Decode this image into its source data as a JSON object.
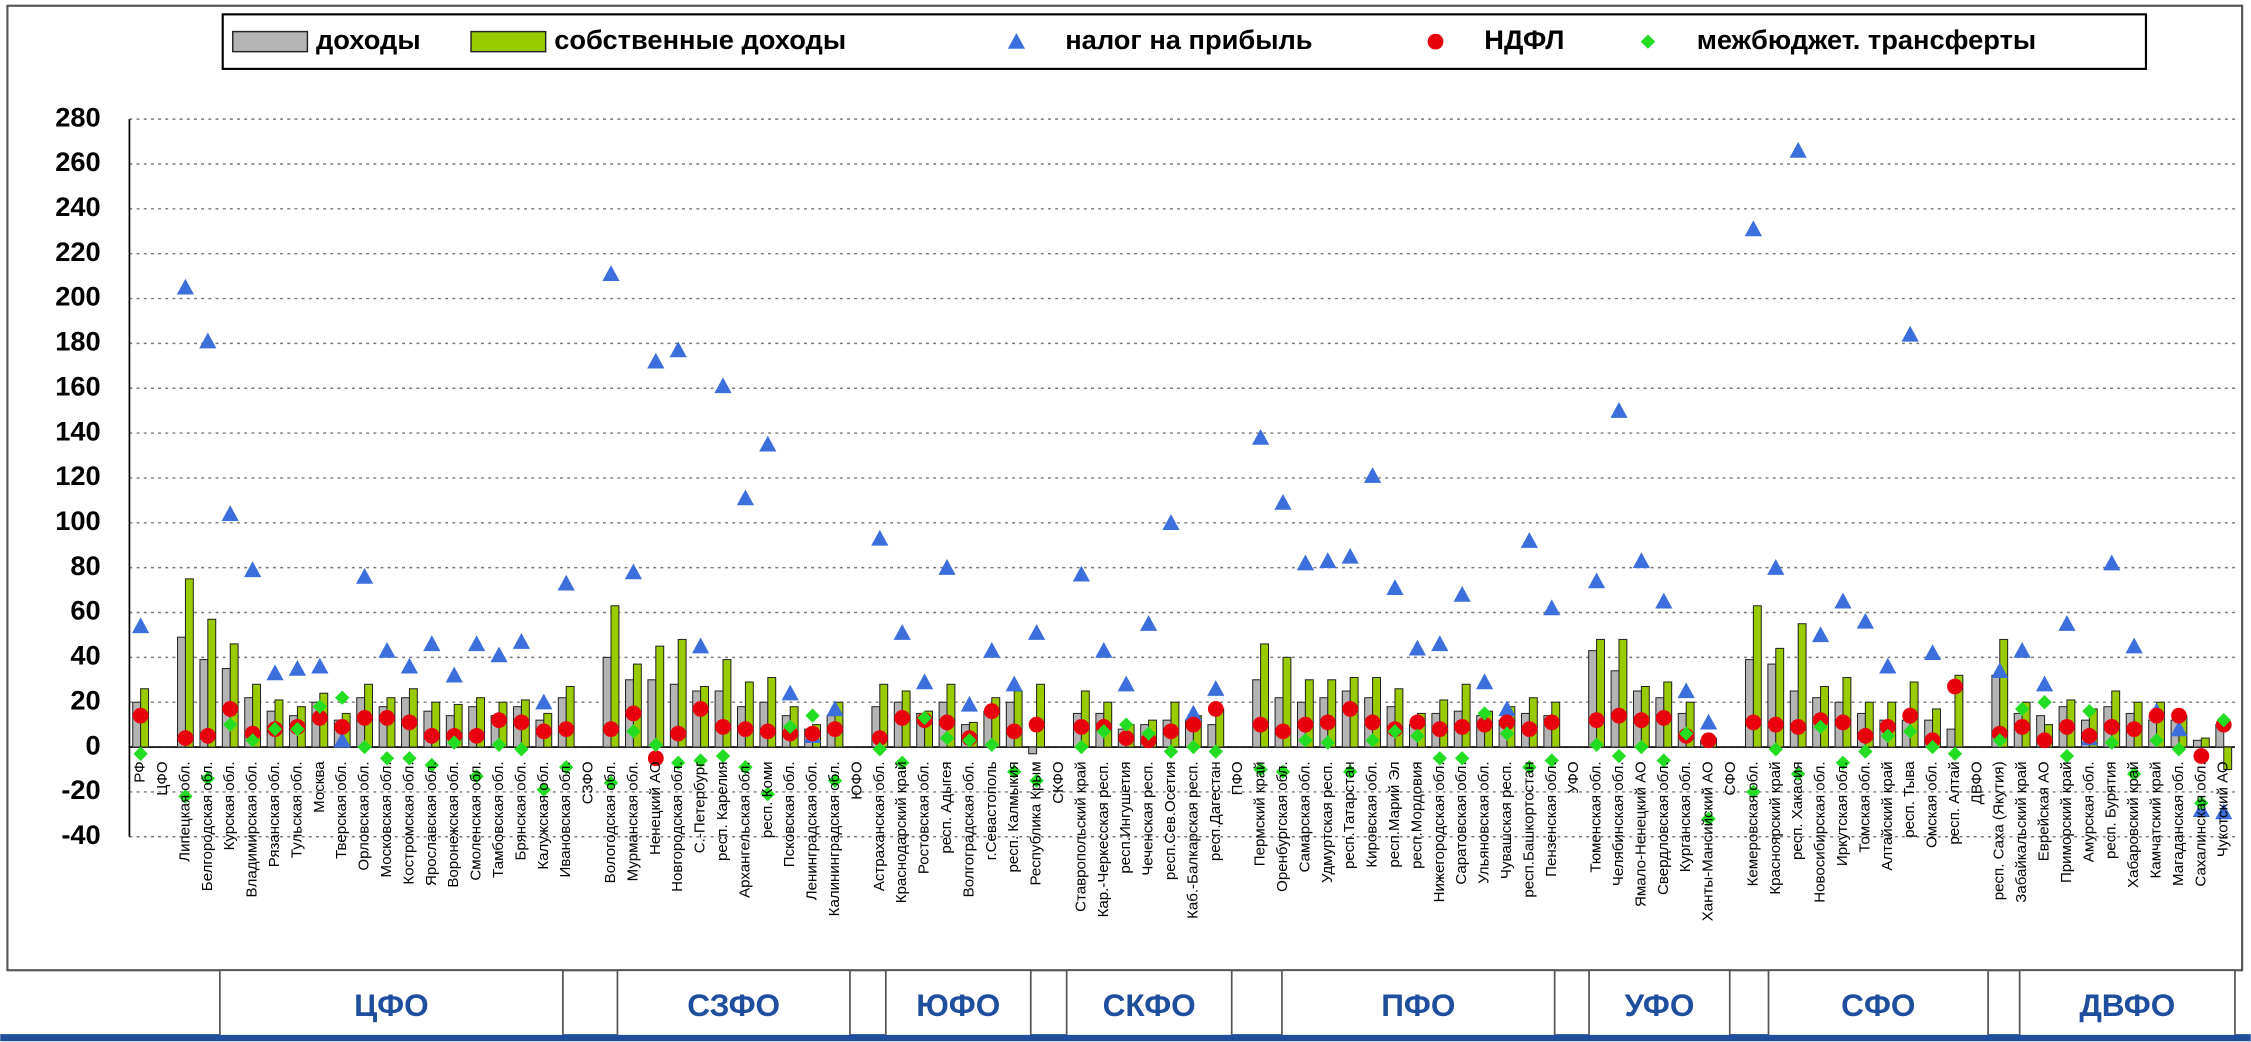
{
  "chart_data": {
    "type": "bar",
    "categories": [
      "РФ",
      "ЦФО",
      "Липецкая обл.",
      "Белгородская обл.",
      "Курская обл.",
      "Владимирская обл.",
      "Рязанская обл.",
      "Тульская обл.",
      "Москва",
      "Тверская обл.",
      "Орловская обл.",
      "Московская обл.",
      "Костромская обл.",
      "Ярославская обл.",
      "Воронежская обл.",
      "Смоленская обл.",
      "Тамбовская обл.",
      "Брянская обл.",
      "Калужская обл.",
      "Ивановская обл.",
      "СЗФО",
      "Вологодская обл.",
      "Мурманская обл.",
      "Ненецкий АО",
      "Новгородская обл.",
      "С.-Петербург",
      "респ. Карелия",
      "Архангельская обл.",
      "респ. Коми",
      "Псковская обл.",
      "Ленинградская обл.",
      "Калининградская обл.",
      "ЮФО",
      "Астраханская обл.",
      "Краснодарский край",
      "Ростовская обл.",
      "респ. Адыгея",
      "Волгоградская обл.",
      "г.Севастополь",
      "респ. Калмыкия",
      "Республика Крым",
      "СКФО",
      "Ставропольский край",
      "Кар.-Черкесская респ.",
      "респ.Ингушетия",
      "Чеченская респ.",
      "респ.Сев.Осетия",
      "Каб.-Балкарская респ.",
      "респ.Дагестан",
      "ПФО",
      "Пермский край",
      "Оренбургская обл.",
      "Самарская обл.",
      "Удмуртская респ.",
      "респ.Татарстан",
      "Кировская обл.",
      "респ.Марий Эл",
      "респ.Мордовия",
      "Нижегородская обл.",
      "Саратовская обл.",
      "Ульяновская обл.",
      "Чувашская респ.",
      "респ.Башкортостан",
      "Пензенская обл.",
      "УФО",
      "Тюменская обл.",
      "Челябинская обл.",
      "Ямало-Ненецкий АО",
      "Свердловская обл.",
      "Курганская обл.",
      "Ханты-Мансийский АО",
      "СФО",
      "Кемеровская обл.",
      "Красноярский край",
      "респ. Хакасия",
      "Новосибирская обл.",
      "Иркутская обл.",
      "Томская обл.",
      "Алтайский край",
      "респ. Тыва",
      "Омская обл.",
      "респ. Алтай",
      "ДВФО",
      "респ. Саха (Якутия)",
      "Забайкальский край",
      "Еврейская АО",
      "Приморский край",
      "Амурская обл.",
      "респ. Бурятия",
      "Хабаровский край",
      "Камчатский край",
      "Магаданская обл.",
      "Сахалинская обл.",
      "Чукотский АО"
    ],
    "series": [
      {
        "name": "доходы",
        "kind": "bar",
        "color": "#b4b4b4",
        "values": [
          20,
          null,
          49,
          39,
          35,
          22,
          16,
          14,
          20,
          12,
          22,
          18,
          22,
          16,
          14,
          18,
          14,
          18,
          12,
          22,
          null,
          40,
          30,
          30,
          28,
          25,
          25,
          18,
          20,
          14,
          8,
          14,
          null,
          18,
          20,
          15,
          20,
          10,
          16,
          20,
          -3,
          null,
          15,
          15,
          8,
          10,
          12,
          12,
          10,
          null,
          30,
          22,
          20,
          22,
          25,
          22,
          18,
          10,
          15,
          16,
          14,
          12,
          15,
          14,
          null,
          43,
          34,
          25,
          22,
          15,
          3,
          null,
          39,
          37,
          25,
          22,
          20,
          15,
          12,
          12,
          12,
          8,
          null,
          32,
          15,
          14,
          18,
          12,
          18,
          15,
          12,
          12,
          3,
          10
        ]
      },
      {
        "name": "собственные доходы",
        "kind": "bar",
        "color": "#99cc00",
        "values": [
          26,
          null,
          75,
          57,
          46,
          28,
          21,
          18,
          24,
          15,
          28,
          22,
          26,
          20,
          19,
          22,
          20,
          21,
          15,
          27,
          null,
          63,
          37,
          45,
          48,
          27,
          39,
          29,
          31,
          18,
          10,
          20,
          null,
          28,
          25,
          16,
          28,
          11,
          22,
          25,
          28,
          null,
          25,
          20,
          10,
          12,
          20,
          14,
          17,
          null,
          46,
          40,
          30,
          30,
          31,
          31,
          26,
          15,
          21,
          28,
          16,
          18,
          22,
          20,
          null,
          48,
          48,
          27,
          29,
          20,
          4,
          null,
          63,
          44,
          55,
          27,
          31,
          20,
          20,
          29,
          17,
          32,
          null,
          48,
          20,
          10,
          21,
          17,
          25,
          20,
          20,
          14,
          4,
          -10
        ]
      },
      {
        "name": "налог на прибыль",
        "kind": "triangle",
        "color": "#3c6fdc",
        "values": [
          54,
          null,
          205,
          181,
          104,
          79,
          33,
          35,
          36,
          3,
          76,
          43,
          36,
          46,
          32,
          46,
          41,
          47,
          20,
          73,
          null,
          211,
          78,
          172,
          177,
          45,
          161,
          111,
          135,
          24,
          5,
          17,
          null,
          93,
          51,
          29,
          80,
          19,
          43,
          28,
          51,
          null,
          77,
          43,
          28,
          55,
          100,
          15,
          26,
          null,
          138,
          109,
          82,
          83,
          85,
          121,
          71,
          44,
          46,
          68,
          29,
          17,
          92,
          62,
          null,
          74,
          150,
          83,
          65,
          25,
          11,
          null,
          231,
          80,
          266,
          50,
          65,
          56,
          36,
          184,
          42,
          null,
          null,
          34,
          43,
          28,
          55,
          4,
          82,
          45,
          16,
          8,
          -28,
          -29
        ]
      },
      {
        "name": "НДФЛ",
        "kind": "circle",
        "color": "#e8000c",
        "values": [
          14,
          null,
          4,
          5,
          17,
          6,
          8,
          9,
          13,
          9,
          13,
          13,
          11,
          5,
          5,
          5,
          12,
          11,
          7,
          8,
          null,
          8,
          15,
          -5,
          6,
          17,
          9,
          8,
          7,
          6,
          6,
          8,
          null,
          4,
          13,
          12,
          11,
          4,
          16,
          7,
          10,
          null,
          9,
          9,
          4,
          3,
          7,
          10,
          17,
          null,
          10,
          7,
          10,
          11,
          17,
          11,
          8,
          11,
          8,
          9,
          10,
          11,
          8,
          11,
          null,
          12,
          14,
          12,
          13,
          5,
          3,
          null,
          11,
          10,
          9,
          12,
          11,
          5,
          9,
          14,
          3,
          27,
          null,
          6,
          9,
          3,
          9,
          5,
          9,
          8,
          14,
          14,
          -4,
          10
        ]
      },
      {
        "name": "межбюджет. трансферты",
        "kind": "diamond",
        "color": "#22dd22",
        "values": [
          -3,
          null,
          -22,
          -14,
          10,
          3,
          8,
          8,
          18,
          22,
          0,
          -5,
          -5,
          -8,
          2,
          -13,
          1,
          -1,
          -19,
          -9,
          null,
          -16,
          7,
          1,
          -7,
          -6,
          -4,
          -9,
          -21,
          9,
          14,
          -15,
          null,
          -1,
          -7,
          13,
          4,
          3,
          1,
          -11,
          -15,
          null,
          0,
          7,
          10,
          6,
          -2,
          0,
          -2,
          null,
          -10,
          -11,
          3,
          2,
          -11,
          3,
          7,
          5,
          -5,
          -5,
          15,
          6,
          -9,
          -6,
          null,
          1,
          -4,
          0,
          -6,
          6,
          -32,
          null,
          -20,
          -1,
          -12,
          9,
          -7,
          -2,
          5,
          7,
          0,
          -3,
          null,
          3,
          17,
          20,
          -4,
          16,
          2,
          -12,
          3,
          -1,
          -25,
          12
        ]
      }
    ],
    "groups": [
      "ЦФО",
      "СЗФО",
      "ЮФО",
      "СКФО",
      "ПФО",
      "УФО",
      "СФО",
      "ДВФО"
    ],
    "ylim": [
      -40,
      280
    ],
    "yticks": [
      -40,
      -20,
      0,
      20,
      40,
      60,
      80,
      100,
      120,
      140,
      160,
      180,
      200,
      220,
      240,
      260,
      280
    ],
    "grid": true,
    "legend": "top"
  }
}
